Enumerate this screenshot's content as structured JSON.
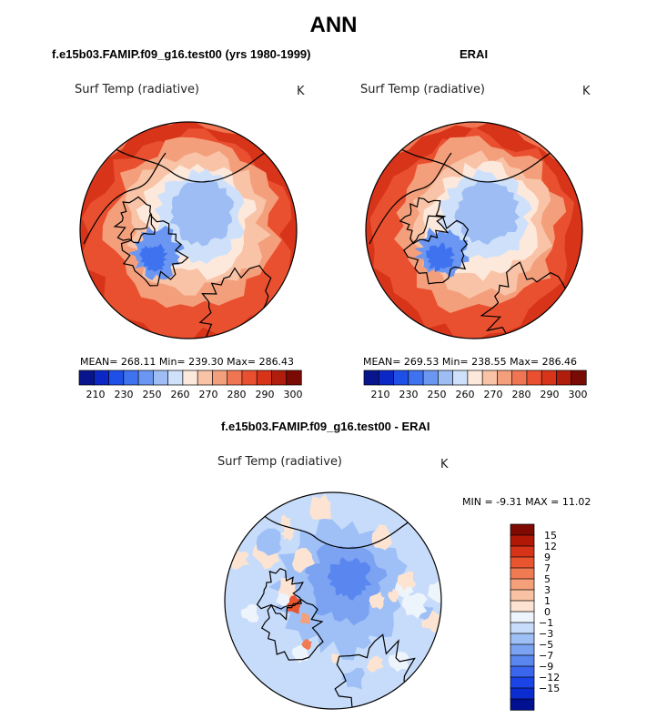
{
  "page": {
    "title": "ANN"
  },
  "colors": {
    "abs_scale": [
      "#08158c",
      "#0b27c6",
      "#1e4fe6",
      "#3f72ee",
      "#6b97f2",
      "#9dbdf4",
      "#cfe1fa",
      "#fde9dc",
      "#f8c3a6",
      "#f49f7c",
      "#f07653",
      "#e9502f",
      "#d8341a",
      "#b01d0c",
      "#7a0a04"
    ],
    "diff_scale": [
      "#001090",
      "#0a2cd0",
      "#1a44e6",
      "#3a66ee",
      "#5a86f0",
      "#7ba3f2",
      "#9fc0f6",
      "#c7dcfa",
      "#eef4fc",
      "#fde4d2",
      "#f9c3a3",
      "#f4a07a",
      "#f07a52",
      "#e8552e",
      "#d63318",
      "#b21806",
      "#7e0a02"
    ]
  },
  "chart_data": [
    {
      "type": "heatmap",
      "title": "f.e15b03.FAMIP.f09_g16.test00 (yrs 1980-1999)",
      "variable": "Surf Temp (radiative)",
      "units": "K",
      "projection": "north polar stereographic",
      "stats": {
        "mean": "268.11",
        "min": "239.30",
        "max": "286.43"
      },
      "stats_text": "MEAN= 268.11  Min= 239.30  Max= 286.43",
      "colorbar": {
        "levels": [
          205,
          210,
          215,
          220,
          225,
          230,
          235,
          240,
          245,
          250,
          255,
          260,
          265,
          270,
          275,
          280,
          285,
          290,
          295,
          300
        ],
        "tick_labels": [
          "210",
          "230",
          "250",
          "260",
          "270",
          "280",
          "290",
          "300"
        ]
      }
    },
    {
      "type": "heatmap",
      "title": "ERAI",
      "variable": "Surf Temp (radiative)",
      "units": "K",
      "projection": "north polar stereographic",
      "stats": {
        "mean": "269.53",
        "min": "238.55",
        "max": "286.46"
      },
      "stats_text": "MEAN= 269.53  Min= 238.55  Max= 286.46",
      "colorbar": {
        "levels": [
          205,
          210,
          215,
          220,
          225,
          230,
          235,
          240,
          245,
          250,
          255,
          260,
          265,
          270,
          275,
          280,
          285,
          290,
          295,
          300
        ],
        "tick_labels": [
          "210",
          "230",
          "250",
          "260",
          "270",
          "280",
          "290",
          "300"
        ]
      }
    },
    {
      "type": "heatmap",
      "title": "f.e15b03.FAMIP.f09_g16.test00 - ERAI",
      "variable": "Surf Temp (radiative)",
      "units": "K",
      "projection": "north polar stereographic",
      "stats": {
        "min": "-9.31",
        "max": "11.02"
      },
      "stats_text": "MIN =   -9.31  MAX =   11.02",
      "colorbar": {
        "levels": [
          -15,
          -12,
          -9,
          -7,
          -5,
          -3,
          -1,
          0,
          1,
          3,
          5,
          7,
          9,
          12,
          15
        ],
        "tick_labels": [
          "15",
          "12",
          "9",
          "7",
          "5",
          "3",
          "1",
          "0",
          "−1",
          "−3",
          "−5",
          "−7",
          "−9",
          "−12",
          "−15"
        ]
      }
    }
  ]
}
